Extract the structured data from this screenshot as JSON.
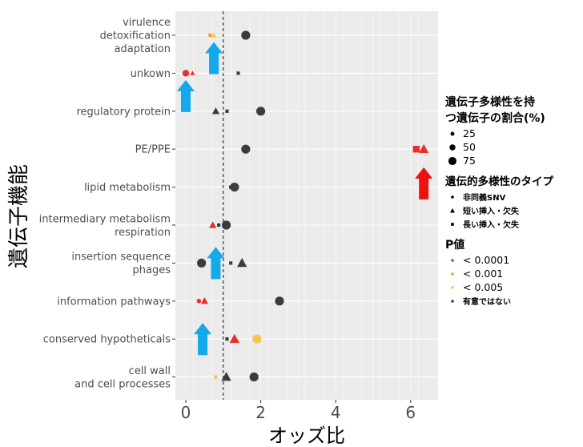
{
  "chart_data": {
    "type": "scatter",
    "xlabel": "オッズ比",
    "ylabel": "遺伝子機能",
    "xlim": [
      -0.3,
      6.6
    ],
    "x_ticks": [
      "0",
      "2",
      "4",
      "6"
    ],
    "x_tick_values": [
      0,
      2,
      4,
      6
    ],
    "reference_line_x": 1,
    "grid": true,
    "legend_position": "right",
    "categories": [
      [
        "virulence",
        "detoxification",
        "adaptation"
      ],
      [
        "unkown"
      ],
      [
        "regulatory protein"
      ],
      [
        "PE/PPE"
      ],
      [
        "lipid metabolism"
      ],
      [
        "intermediary metabolism",
        "respiration"
      ],
      [
        "insertion sequence",
        "phages"
      ],
      [
        "information pathways"
      ],
      [
        "conserved hypotheticals"
      ],
      [
        "cell wall",
        "and cell processes"
      ]
    ],
    "points": [
      {
        "category": 0,
        "x": 0.65,
        "variant": "long",
        "pval": "p001",
        "size": "small"
      },
      {
        "category": 0,
        "x": 0.75,
        "variant": "indel",
        "pval": "p005",
        "size": "small"
      },
      {
        "category": 0,
        "x": 1.6,
        "variant": "snv",
        "pval": "ns",
        "size": "large"
      },
      {
        "category": 1,
        "x": 0.0,
        "variant": "snv",
        "pval": "p0001",
        "size": "medium"
      },
      {
        "category": 1,
        "x": 0.18,
        "variant": "indel",
        "pval": "p0001",
        "size": "small"
      },
      {
        "category": 1,
        "x": 1.4,
        "variant": "long",
        "pval": "ns",
        "size": "small"
      },
      {
        "category": 2,
        "x": 0.8,
        "variant": "indel",
        "pval": "ns",
        "size": "medium"
      },
      {
        "category": 2,
        "x": 1.1,
        "variant": "long",
        "pval": "ns",
        "size": "small"
      },
      {
        "category": 2,
        "x": 2.0,
        "variant": "snv",
        "pval": "ns",
        "size": "large"
      },
      {
        "category": 3,
        "x": 1.6,
        "variant": "snv",
        "pval": "ns",
        "size": "large"
      },
      {
        "category": 3,
        "x": 6.15,
        "variant": "long",
        "pval": "p0001",
        "size": "large"
      },
      {
        "category": 3,
        "x": 6.35,
        "variant": "indel",
        "pval": "p0001",
        "size": "large"
      },
      {
        "category": 4,
        "x": 1.2,
        "variant": "long",
        "pval": "ns",
        "size": "small"
      },
      {
        "category": 4,
        "x": 1.3,
        "variant": "snv",
        "pval": "ns",
        "size": "large"
      },
      {
        "category": 5,
        "x": 0.72,
        "variant": "indel",
        "pval": "p0001",
        "size": "medium"
      },
      {
        "category": 5,
        "x": 0.88,
        "variant": "long",
        "pval": "ns",
        "size": "small"
      },
      {
        "category": 5,
        "x": 1.08,
        "variant": "snv",
        "pval": "ns",
        "size": "large"
      },
      {
        "category": 6,
        "x": 0.42,
        "variant": "snv",
        "pval": "ns",
        "size": "large"
      },
      {
        "category": 6,
        "x": 1.2,
        "variant": "long",
        "pval": "ns",
        "size": "small"
      },
      {
        "category": 6,
        "x": 1.5,
        "variant": "indel",
        "pval": "ns",
        "size": "large"
      },
      {
        "category": 7,
        "x": 0.35,
        "variant": "snv",
        "pval": "p0001",
        "size": "small"
      },
      {
        "category": 7,
        "x": 0.5,
        "variant": "indel",
        "pval": "p0001",
        "size": "medium"
      },
      {
        "category": 7,
        "x": 2.5,
        "variant": "snv",
        "pval": "ns",
        "size": "large"
      },
      {
        "category": 8,
        "x": 1.1,
        "variant": "long",
        "pval": "ns",
        "size": "small"
      },
      {
        "category": 8,
        "x": 1.3,
        "variant": "indel",
        "pval": "p0001",
        "size": "large"
      },
      {
        "category": 8,
        "x": 1.9,
        "variant": "snv",
        "pval": "p005",
        "size": "large"
      },
      {
        "category": 9,
        "x": 0.8,
        "variant": "long",
        "pval": "p005",
        "size": "small"
      },
      {
        "category": 9,
        "x": 1.08,
        "variant": "indel",
        "pval": "ns",
        "size": "large"
      },
      {
        "category": 9,
        "x": 1.82,
        "variant": "snv",
        "pval": "ns",
        "size": "large"
      }
    ],
    "arrows": [
      {
        "x": 0.75,
        "category": 0.6,
        "direction": "up",
        "color": "#14a9e8"
      },
      {
        "x": 0.0,
        "category": 1.6,
        "direction": "up",
        "color": "#14a9e8"
      },
      {
        "x": 6.35,
        "category": 3.9,
        "direction": "up",
        "color": "#ee1111"
      },
      {
        "x": 0.8,
        "category": 6.0,
        "direction": "up",
        "color": "#14a9e8"
      },
      {
        "x": 0.45,
        "category": 8.0,
        "direction": "up",
        "color": "#14a9e8"
      }
    ]
  },
  "colors": {
    "p0001": "#e8302a",
    "p001": "#f39a34",
    "p005": "#f2c84b",
    "ns": "#3c3c3c",
    "panel": "#ebebeb",
    "grid": "#ffffff"
  },
  "legend": {
    "size_title_1": "遺伝子多様性を持",
    "size_title_2": "つ遺伝子の割合(%)",
    "sizes": [
      {
        "label": "25",
        "key": "small"
      },
      {
        "label": "50",
        "key": "medium"
      },
      {
        "label": "75",
        "key": "large"
      }
    ],
    "type_title": "遺伝的多様性のタイプ",
    "types": [
      {
        "label": "非同義SNV",
        "key": "snv"
      },
      {
        "label": "短い挿入・欠失",
        "key": "indel"
      },
      {
        "label": "長い挿入・欠失",
        "key": "long"
      }
    ],
    "pval_title": "P値",
    "pvals": [
      {
        "label": "< 0.0001",
        "key": "p0001"
      },
      {
        "label": "< 0.001",
        "key": "p001"
      },
      {
        "label": "< 0.005",
        "key": "p005"
      },
      {
        "label": "有意ではない",
        "key": "ns"
      }
    ]
  }
}
